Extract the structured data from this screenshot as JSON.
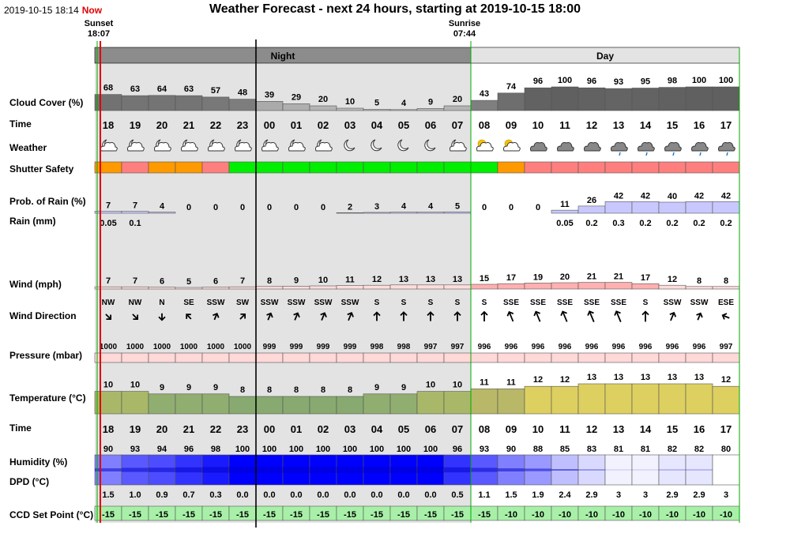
{
  "header": {
    "timestamp": "2019-10-15 18:14",
    "now_label": "Now",
    "title": "Weather Forecast - next 24 hours, starting at 2019-10-15 18:00",
    "sunset_label": "Sunset",
    "sunset_time": "18:07",
    "sunrise_label": "Sunrise",
    "sunrise_time": "07:44",
    "night_label": "Night",
    "day_label": "Day"
  },
  "labels": {
    "cloud": "Cloud Cover (%)",
    "time1": "Time",
    "weather": "Weather",
    "shutter": "Shutter Safety",
    "rain_prob": "Prob. of Rain (%)",
    "rain_mm": "Rain (mm)",
    "wind": "Wind (mph)",
    "wind_dir": "Wind Direction",
    "pressure": "Pressure (mbar)",
    "temperature": "Temperature (°C)",
    "time2": "Time",
    "humidity": "Humidity (%)",
    "dpd": "DPD (°C)",
    "ccd": "CCD Set Point (°C)"
  },
  "colors": {
    "night_bg": "#e3e3e3",
    "header_night": "#8c8c8c",
    "header_day": "#e3e3e3",
    "now_line": "#e00000",
    "sunset_line": "#00aa00",
    "safety_green": "#00ee00",
    "safety_orange": "#ff9900",
    "safety_red": "#ff7f7f",
    "pressure_fill": "#ffd8d8",
    "ccd_fill": "#a8f0a8"
  },
  "chart_data": {
    "type": "table",
    "hours": [
      "18",
      "19",
      "20",
      "21",
      "22",
      "23",
      "00",
      "01",
      "02",
      "03",
      "04",
      "05",
      "06",
      "07",
      "08",
      "09",
      "10",
      "11",
      "12",
      "13",
      "14",
      "15",
      "16",
      "17"
    ],
    "series": [
      {
        "name": "Cloud Cover (%)",
        "values": [
          68,
          63,
          64,
          63,
          57,
          48,
          39,
          29,
          20,
          10,
          5,
          4,
          9,
          20,
          43,
          74,
          96,
          100,
          96,
          93,
          95,
          98,
          100,
          100
        ]
      },
      {
        "name": "Weather",
        "values": [
          "partly-cloudy-night",
          "partly-cloudy-night",
          "partly-cloudy-night",
          "partly-cloudy-night",
          "partly-cloudy-night",
          "partly-cloudy-night",
          "partly-cloudy-night",
          "partly-cloudy-night",
          "partly-cloudy-night",
          "clear-night",
          "clear-night",
          "clear-night",
          "clear-night",
          "partly-cloudy-night",
          "partly-cloudy-day",
          "partly-cloudy-day",
          "overcast",
          "overcast",
          "overcast",
          "overcast-rain",
          "overcast-rain",
          "overcast-rain",
          "overcast-rain",
          "overcast-rain"
        ]
      },
      {
        "name": "Shutter Safety",
        "values": [
          "orange",
          "red",
          "orange",
          "orange",
          "red",
          "green",
          "green",
          "green",
          "green",
          "green",
          "green",
          "green",
          "green",
          "green",
          "green",
          "orange",
          "red",
          "red",
          "red",
          "red",
          "red",
          "red",
          "red",
          "red"
        ]
      },
      {
        "name": "Prob. of Rain (%)",
        "values": [
          7,
          7,
          4,
          0,
          0,
          0,
          0,
          0,
          0,
          2,
          3,
          4,
          4,
          5,
          0,
          0,
          0,
          11,
          26,
          42,
          42,
          40,
          42,
          42
        ]
      },
      {
        "name": "Rain (mm)",
        "values": [
          0.05,
          0.1,
          null,
          null,
          null,
          null,
          null,
          null,
          null,
          null,
          null,
          null,
          null,
          null,
          null,
          null,
          null,
          0.05,
          0.2,
          0.3,
          0.2,
          0.2,
          0.2,
          0.2
        ]
      },
      {
        "name": "Wind (mph)",
        "values": [
          7,
          7,
          6,
          5,
          6,
          7,
          8,
          9,
          10,
          11,
          12,
          13,
          13,
          13,
          15,
          17,
          19,
          20,
          21,
          21,
          17,
          12,
          8,
          8
        ]
      },
      {
        "name": "Wind Direction",
        "values": [
          "NW",
          "NW",
          "N",
          "SE",
          "SSW",
          "SW",
          "SSW",
          "SSW",
          "SSW",
          "SSW",
          "S",
          "S",
          "S",
          "S",
          "S",
          "SSE",
          "SSE",
          "SSE",
          "SSE",
          "SSE",
          "S",
          "SSW",
          "SSW",
          "ESE"
        ]
      },
      {
        "name": "Pressure (mbar)",
        "values": [
          1000,
          1000,
          1000,
          1000,
          1000,
          1000,
          999,
          999,
          999,
          999,
          998,
          998,
          997,
          997,
          996,
          996,
          996,
          996,
          996,
          996,
          996,
          996,
          996,
          997
        ]
      },
      {
        "name": "Temperature (°C)",
        "values": [
          10,
          10,
          9,
          9,
          9,
          8,
          8,
          8,
          8,
          8,
          9,
          9,
          10,
          10,
          11,
          11,
          12,
          12,
          13,
          13,
          13,
          13,
          13,
          12
        ]
      },
      {
        "name": "Humidity (%)",
        "values": [
          90,
          93,
          94,
          96,
          98,
          100,
          100,
          100,
          100,
          100,
          100,
          100,
          100,
          96,
          93,
          90,
          88,
          85,
          83,
          81,
          81,
          82,
          82,
          80
        ]
      },
      {
        "name": "DPD (°C)",
        "values": [
          "1.5",
          "1.0",
          "0.9",
          "0.7",
          "0.3",
          "0.0",
          "0.0",
          "0.0",
          "0.0",
          "0.0",
          "0.0",
          "0.0",
          "0.0",
          "0.5",
          "1.1",
          "1.5",
          "1.9",
          "2.4",
          "2.9",
          "3",
          "3",
          "2.9",
          "2.9",
          "3"
        ]
      },
      {
        "name": "CCD Set Point (°C)",
        "values": [
          -15,
          -15,
          -15,
          -15,
          -15,
          -15,
          -15,
          -15,
          -15,
          -15,
          -15,
          -15,
          -15,
          -15,
          -15,
          -10,
          -10,
          -10,
          -10,
          -10,
          -10,
          -10,
          -10,
          -10
        ]
      }
    ]
  }
}
